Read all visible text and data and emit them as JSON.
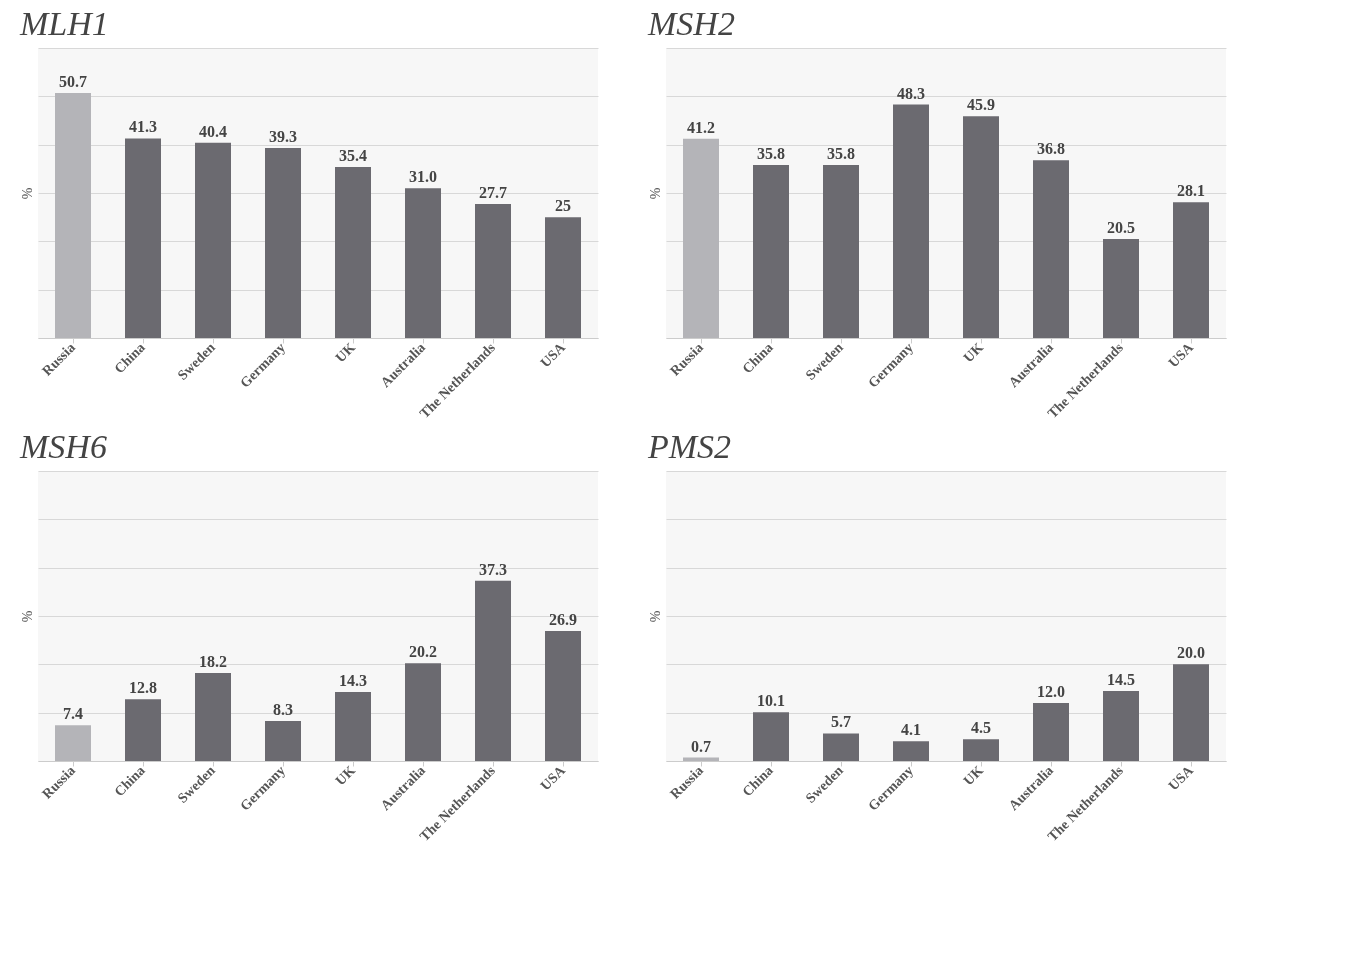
{
  "chart_data": [
    {
      "type": "bar",
      "title": "MLH1",
      "ylabel": "%",
      "categories": [
        "Russia",
        "China",
        "Sweden",
        "Germany",
        "UK",
        "Australia",
        "The Netherlands",
        "USA"
      ],
      "values": [
        50.7,
        41.3,
        40.4,
        39.3,
        35.4,
        31.0,
        27.7,
        25
      ],
      "value_labels": [
        "50.7",
        "41.3",
        "40.4",
        "39.3",
        "35.4",
        "31.0",
        "27.7",
        "25"
      ],
      "colors": [
        "#b4b4b8",
        "#6b6a70",
        "#6b6a70",
        "#6b6a70",
        "#6b6a70",
        "#6b6a70",
        "#6b6a70",
        "#6b6a70"
      ],
      "ylim": [
        0,
        60
      ],
      "yticks": [
        {
          "value": 0,
          "label": null
        },
        {
          "value": 10,
          "label": null
        },
        {
          "value": 20,
          "label": null
        },
        {
          "value": 30,
          "label": null
        },
        {
          "value": 40,
          "label": null
        },
        {
          "value": 50,
          "label": null
        },
        {
          "value": 60,
          "label": null
        }
      ],
      "grid": "y",
      "tick_labels": "x"
    },
    {
      "type": "bar",
      "title": "MSH2",
      "ylabel": "%",
      "categories": [
        "Russia",
        "China",
        "Sweden",
        "Germany",
        "UK",
        "Australia",
        "The Netherlands",
        "USA"
      ],
      "values": [
        41.2,
        35.8,
        35.8,
        48.3,
        45.9,
        36.8,
        20.5,
        28.1
      ],
      "value_labels": [
        "41.2",
        "35.8",
        "35.8",
        "48.3",
        "45.9",
        "36.8",
        "20.5",
        "28.1"
      ],
      "colors": [
        "#b4b4b8",
        "#6b6a70",
        "#6b6a70",
        "#6b6a70",
        "#6b6a70",
        "#6b6a70",
        "#6b6a70",
        "#6b6a70"
      ],
      "ylim": [
        0,
        60
      ],
      "yticks": [
        {
          "value": 0,
          "label": null
        },
        {
          "value": 10,
          "label": null
        },
        {
          "value": 20,
          "label": null
        },
        {
          "value": 30,
          "label": null
        },
        {
          "value": 40,
          "label": null
        },
        {
          "value": 50,
          "label": null
        },
        {
          "value": 60,
          "label": null
        }
      ],
      "grid": "y",
      "tick_labels": "x"
    },
    {
      "type": "bar",
      "title": "MSH6",
      "ylabel": "%",
      "categories": [
        "Russia",
        "China",
        "Sweden",
        "Germany",
        "UK",
        "Australia",
        "The Netherlands",
        "USA"
      ],
      "values": [
        7.4,
        12.8,
        18.2,
        8.3,
        14.3,
        20.2,
        37.3,
        26.9
      ],
      "value_labels": [
        "7.4",
        "12.8",
        "18.2",
        "8.3",
        "14.3",
        "20.2",
        "37.3",
        "26.9"
      ],
      "colors": [
        "#b4b4b8",
        "#6b6a70",
        "#6b6a70",
        "#6b6a70",
        "#6b6a70",
        "#6b6a70",
        "#6b6a70",
        "#6b6a70"
      ],
      "ylim": [
        0,
        60
      ],
      "yticks": [
        {
          "value": 0,
          "label": null
        },
        {
          "value": 10,
          "label": null
        },
        {
          "value": 20,
          "label": null
        },
        {
          "value": 30,
          "label": null
        },
        {
          "value": 40,
          "label": null
        },
        {
          "value": 50,
          "label": null
        },
        {
          "value": 60,
          "label": null
        }
      ],
      "grid": "y",
      "tick_labels": "x"
    },
    {
      "type": "bar",
      "title": "PMS2",
      "ylabel": "%",
      "categories": [
        "Russia",
        "China",
        "Sweden",
        "Germany",
        "UK",
        "Australia",
        "The Netherlands",
        "USA"
      ],
      "values": [
        0.7,
        10.1,
        5.7,
        4.1,
        4.5,
        12.0,
        14.5,
        20.0
      ],
      "value_labels": [
        "0.7",
        "10.1",
        "5.7",
        "4.1",
        "4.5",
        "12.0",
        "14.5",
        "20.0"
      ],
      "colors": [
        "#b4b4b8",
        "#6b6a70",
        "#6b6a70",
        "#6b6a70",
        "#6b6a70",
        "#6b6a70",
        "#6b6a70",
        "#6b6a70"
      ],
      "ylim": [
        0,
        60
      ],
      "yticks": [
        {
          "value": 0,
          "label": null
        },
        {
          "value": 10,
          "label": null
        },
        {
          "value": 20,
          "label": null
        },
        {
          "value": 30,
          "label": null
        },
        {
          "value": 40,
          "label": null
        },
        {
          "value": 50,
          "label": null
        },
        {
          "value": 60,
          "label": null
        }
      ],
      "grid": "y",
      "tick_labels": "x"
    }
  ]
}
